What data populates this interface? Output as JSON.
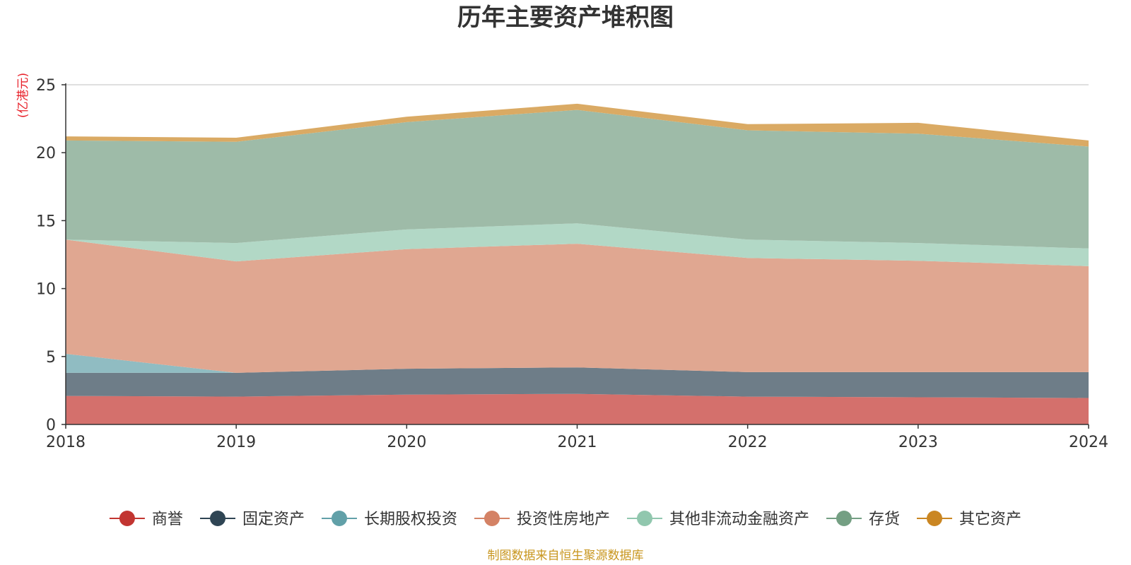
{
  "chart_data": {
    "type": "area",
    "stacked": true,
    "title": "历年主要资产堆积图",
    "unit_label": "(亿港元)",
    "x": [
      "2018",
      "2019",
      "2020",
      "2021",
      "2022",
      "2023",
      "2024"
    ],
    "ylim": [
      0,
      25
    ],
    "yticks": [
      "0",
      "5",
      "10",
      "15",
      "20",
      "25"
    ],
    "grid": true,
    "legend_position": "bottom",
    "series": [
      {
        "name": "商誉",
        "color": "#c23531",
        "fill": "#d4706c",
        "values": [
          2.1,
          2.05,
          2.2,
          2.25,
          2.05,
          2.0,
          1.95
        ]
      },
      {
        "name": "固定资产",
        "color": "#2f4554",
        "fill": "#6e7d88",
        "values": [
          1.7,
          1.75,
          1.9,
          1.95,
          1.8,
          1.85,
          1.9
        ]
      },
      {
        "name": "长期股权投资",
        "color": "#61a0a8",
        "fill": "#90bcc2",
        "values": [
          1.4,
          0.0,
          0.0,
          0.0,
          0.0,
          0.0,
          0.0
        ]
      },
      {
        "name": "投资性房地产",
        "color": "#d48265",
        "fill": "#e0a791",
        "values": [
          8.4,
          8.2,
          8.8,
          9.1,
          8.4,
          8.2,
          7.8
        ]
      },
      {
        "name": "其他非流动金融资产",
        "color": "#91c7ae",
        "fill": "#b2d8c6",
        "values": [
          0.0,
          1.35,
          1.45,
          1.5,
          1.35,
          1.3,
          1.3
        ]
      },
      {
        "name": "存货",
        "color": "#749f83",
        "fill": "#9ebba8",
        "values": [
          7.3,
          7.45,
          7.9,
          8.35,
          8.05,
          8.05,
          7.5
        ]
      },
      {
        "name": "其它资产",
        "color": "#ca8622",
        "fill": "#daaa64",
        "values": [
          0.3,
          0.3,
          0.4,
          0.45,
          0.45,
          0.8,
          0.45
        ]
      }
    ],
    "source_note": "制图数据来自恒生聚源数据库",
    "colors": {
      "unit": "#e8212a",
      "source": "#c8961e",
      "grid": "#cccccc",
      "axis": "#333333"
    }
  }
}
